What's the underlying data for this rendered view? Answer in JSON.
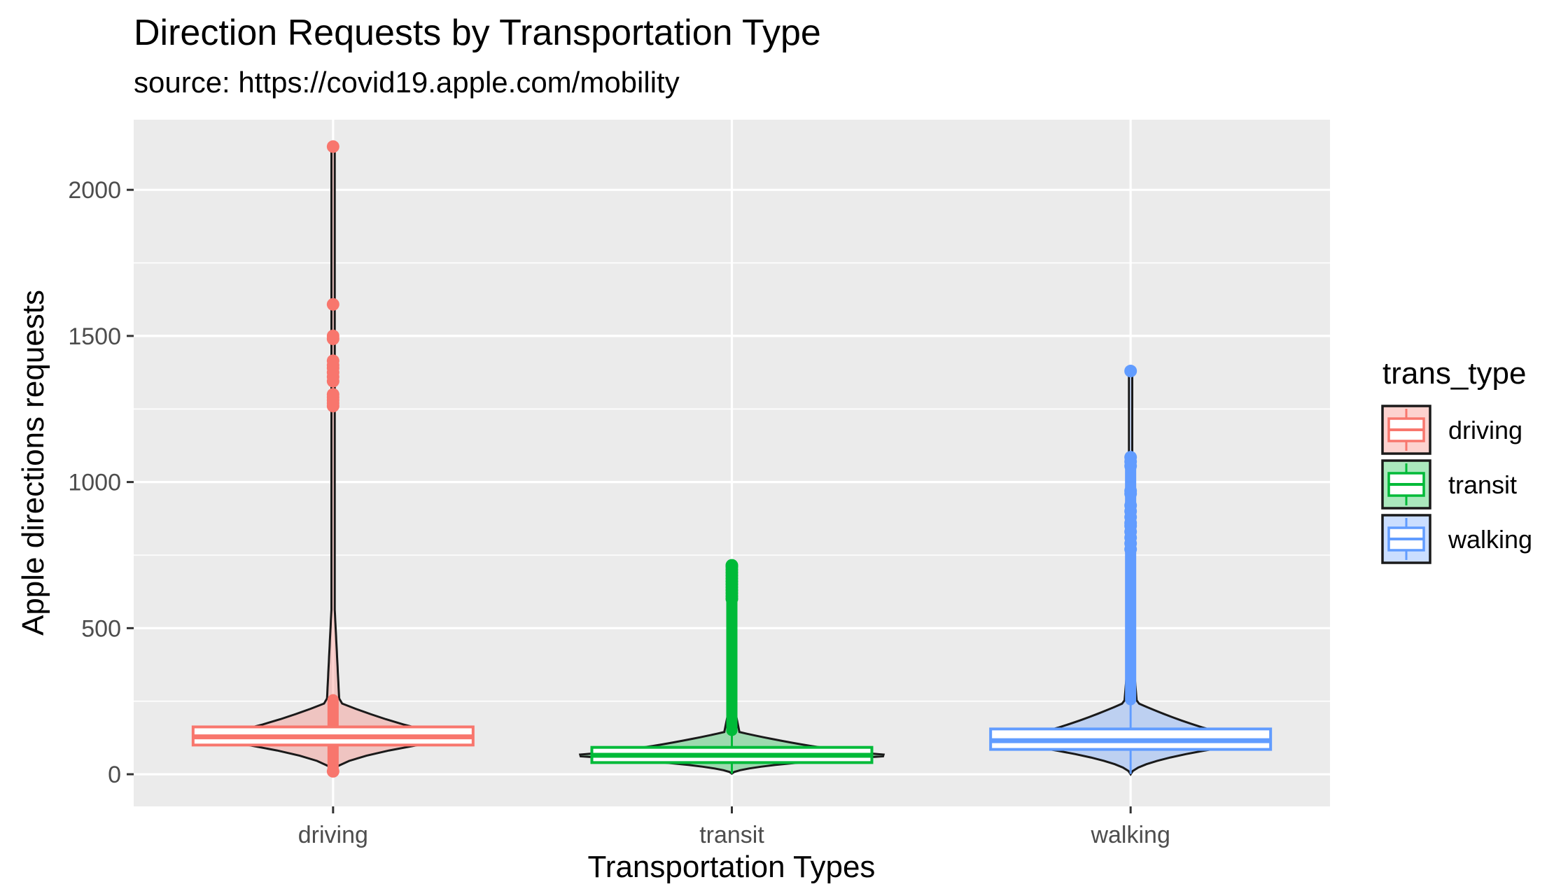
{
  "chart_data": {
    "type": "violin+boxplot",
    "title": "Direction Requests by Transportation Type",
    "subtitle": "source: https://covid19.apple.com/mobility",
    "xlabel": "Transportation Types",
    "ylabel": "Apple directions requests",
    "categories": [
      "driving",
      "transit",
      "walking"
    ],
    "ylim": [
      -110,
      2240
    ],
    "y_ticks": [
      0,
      500,
      1000,
      1500,
      2000
    ],
    "y_tick_labels": [
      "0",
      "500",
      "1000",
      "1500",
      "2000"
    ],
    "grid": true,
    "legend": {
      "title": "trans_type",
      "position": "right",
      "entries": [
        "driving",
        "transit",
        "walking"
      ]
    },
    "colors": {
      "driving": "#F8766D",
      "transit": "#00BA38",
      "walking": "#619CFF"
    },
    "series": [
      {
        "name": "driving",
        "box": {
          "lower_whisker": 10,
          "q1": 100,
          "median": 128,
          "q3": 162,
          "upper_whisker": 255
        },
        "violin": {
          "y_min": 10,
          "y_max": 2150
        },
        "outliers": [
          10,
          2148,
          1608,
          1500,
          1490,
          1415,
          1400,
          1390,
          1375,
          1360,
          1345,
          1300,
          1290,
          1280,
          1270,
          1260
        ]
      },
      {
        "name": "transit",
        "box": {
          "lower_whisker": 2,
          "q1": 40,
          "median": 65,
          "q3": 92,
          "upper_whisker": 150
        },
        "violin": {
          "y_min": 2,
          "y_max": 715
        },
        "outliers": [
          715,
          710,
          700,
          690,
          680,
          670,
          660,
          650,
          640,
          630,
          620,
          610,
          600
        ]
      },
      {
        "name": "walking",
        "box": {
          "lower_whisker": 1,
          "q1": 85,
          "median": 115,
          "q3": 155,
          "upper_whisker": 255
        },
        "violin": {
          "y_min": 0,
          "y_max": 1380
        },
        "outliers": [
          1380,
          1085,
          1070,
          1055,
          970,
          960,
          920,
          900,
          880,
          860,
          850,
          830,
          810,
          790,
          770
        ]
      }
    ]
  }
}
